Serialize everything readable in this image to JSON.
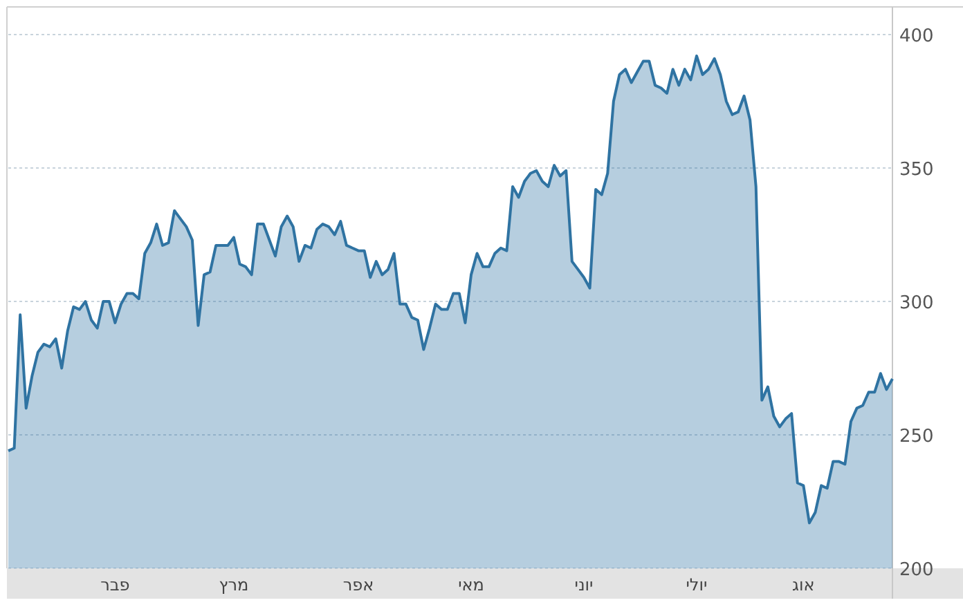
{
  "chart_data": {
    "type": "area",
    "ylim": [
      200,
      400
    ],
    "yticks": [
      200,
      250,
      300,
      350,
      400
    ],
    "grid": "y",
    "categories": [
      null,
      null,
      null,
      null,
      null,
      null,
      null,
      null,
      null,
      null,
      null,
      null,
      null,
      null,
      null,
      null,
      null,
      null,
      "פבר",
      null,
      null,
      null,
      null,
      null,
      null,
      null,
      null,
      null,
      null,
      null,
      null,
      null,
      null,
      null,
      null,
      null,
      null,
      null,
      "מרץ",
      null,
      null,
      null,
      null,
      null,
      null,
      null,
      null,
      null,
      null,
      null,
      null,
      null,
      null,
      null,
      null,
      null,
      null,
      null,
      null,
      "אפר",
      null,
      null,
      null,
      null,
      null,
      null,
      null,
      null,
      null,
      null,
      null,
      null,
      null,
      null,
      null,
      null,
      null,
      null,
      "מאי",
      null,
      null,
      null,
      null,
      null,
      null,
      null,
      null,
      null,
      null,
      null,
      null,
      null,
      null,
      null,
      null,
      null,
      null,
      "יוני",
      null,
      null,
      null,
      null,
      null,
      null,
      null,
      null,
      null,
      null,
      null,
      null,
      null,
      null,
      null,
      null,
      null,
      null,
      "יולי",
      null,
      null,
      null,
      null,
      null,
      null,
      null,
      null,
      null,
      null,
      null,
      null,
      null,
      null,
      null,
      null,
      null,
      "אוג",
      null,
      null,
      null,
      null,
      null,
      null,
      null,
      null,
      null,
      null,
      null,
      null,
      null,
      null,
      null
    ],
    "series": [
      {
        "color": "#2f73a2",
        "values": [
          244,
          245,
          295,
          260,
          272,
          281,
          284,
          283,
          286,
          275,
          289,
          298,
          297,
          300,
          293,
          290,
          300,
          300,
          292,
          299,
          303,
          303,
          301,
          318,
          322,
          329,
          321,
          322,
          334,
          331,
          328,
          323,
          291,
          310,
          311,
          321,
          321,
          321,
          324,
          314,
          313,
          310,
          329,
          329,
          323,
          317,
          328,
          332,
          328,
          315,
          321,
          320,
          327,
          329,
          328,
          325,
          330,
          321,
          320,
          319,
          319,
          309,
          315,
          310,
          312,
          318,
          299,
          299,
          294,
          293,
          282,
          290,
          299,
          297,
          297,
          303,
          303,
          292,
          310,
          318,
          313,
          313,
          318,
          320,
          319,
          343,
          339,
          345,
          348,
          349,
          345,
          343,
          351,
          347,
          349,
          315,
          312,
          309,
          305,
          342,
          340,
          348,
          375,
          385,
          387,
          382,
          386,
          390,
          390,
          381,
          380,
          378,
          387,
          381,
          387,
          383,
          392,
          385,
          387,
          391,
          385,
          375,
          370,
          371,
          377,
          368,
          343,
          263,
          268,
          257,
          253,
          256,
          258,
          232,
          231,
          217,
          221,
          231,
          230,
          240,
          240,
          239,
          255,
          260,
          261,
          266,
          266,
          273,
          267,
          271
        ]
      }
    ]
  }
}
